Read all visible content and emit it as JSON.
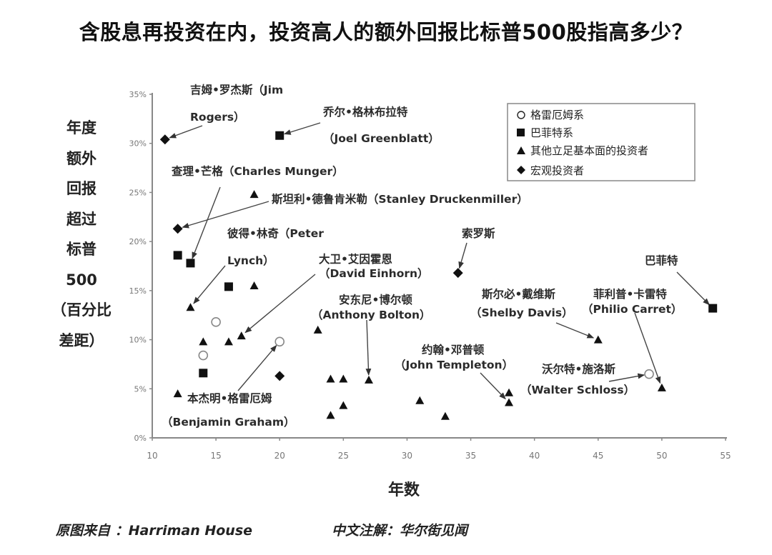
{
  "title": "含股息再投资在内，投资高人的额外回报比标普500股指高多少？",
  "y_axis_label_lines": [
    "年度",
    "额外",
    "回报",
    "超过",
    "标普",
    "500",
    "（百分比",
    "差距）"
  ],
  "x_axis_label": "年数",
  "footer": {
    "source": "原图来自 ：Harriman House",
    "note": "中文注解：华尔街见闻"
  },
  "legend": [
    {
      "symbol": "circle-open",
      "label": "格雷厄姆系"
    },
    {
      "symbol": "square",
      "label": "巴菲特系"
    },
    {
      "symbol": "triangle",
      "label": "其他立足基本面的投资者"
    },
    {
      "symbol": "diamond",
      "label": "宏观投资者"
    }
  ],
  "annotations": [
    {
      "lines": [
        "吉姆•罗杰斯（Jim",
        "Rogers）"
      ]
    },
    {
      "lines": [
        "乔尔•格林布拉特",
        "（Joel Greenblatt）"
      ]
    },
    {
      "lines": [
        "查理•芒格（Charles Munger）"
      ]
    },
    {
      "lines": [
        "斯坦利•德鲁肯米勒（Stanley Druckenmiller）"
      ]
    },
    {
      "lines": [
        "彼得•林奇（Peter",
        "Lynch）"
      ]
    },
    {
      "lines": [
        "大卫•艾因霍恩",
        "（David Einhorn）"
      ]
    },
    {
      "lines": [
        "安东尼•博尔顿",
        "（Anthony Bolton）"
      ]
    },
    {
      "lines": [
        "索罗斯"
      ]
    },
    {
      "lines": [
        "巴菲特"
      ]
    },
    {
      "lines": [
        "斯尔必•戴维斯",
        "（Shelby Davis）"
      ]
    },
    {
      "lines": [
        "菲利普•卡雷特",
        "（Philio Carret）"
      ]
    },
    {
      "lines": [
        "约翰•邓普顿",
        "（John Templeton）"
      ]
    },
    {
      "lines": [
        "沃尔特•施洛斯",
        "（Walter Schloss）"
      ]
    },
    {
      "lines": [
        "本杰明•格雷厄姆",
        "（Benjamin Graham）"
      ]
    }
  ],
  "chart_data": {
    "type": "scatter",
    "title": "含股息再投资在内，投资高人的额外回报比标普500股指高多少？",
    "xlabel": "年数",
    "ylabel": "年度额外回报超过标普500（百分比差距）",
    "xlim": [
      10,
      55
    ],
    "ylim": [
      0,
      35
    ],
    "x_ticks": [
      10,
      15,
      20,
      25,
      30,
      35,
      40,
      45,
      50,
      55
    ],
    "y_ticks": [
      "0%",
      "5%",
      "10%",
      "15%",
      "20%",
      "25%",
      "30%",
      "35%"
    ],
    "grid": false,
    "legend_position": "upper right",
    "series": [
      {
        "name": "格雷厄姆系",
        "marker": "circle-open",
        "points": [
          {
            "x": 15,
            "y": 11.8
          },
          {
            "x": 14,
            "y": 8.4
          },
          {
            "x": 20,
            "y": 9.8,
            "label": "本杰明•格雷厄姆（Benjamin Graham）"
          },
          {
            "x": 49,
            "y": 6.5,
            "label": "沃尔特•施洛斯（Walter Schloss）"
          }
        ]
      },
      {
        "name": "巴菲特系",
        "marker": "square",
        "points": [
          {
            "x": 20,
            "y": 30.8,
            "label": "乔尔•格林布拉特（Joel Greenblatt）"
          },
          {
            "x": 12,
            "y": 18.6
          },
          {
            "x": 13,
            "y": 17.8,
            "label": "查理•芒格（Charles Munger）"
          },
          {
            "x": 16,
            "y": 15.4
          },
          {
            "x": 14,
            "y": 6.6
          },
          {
            "x": 54,
            "y": 13.2,
            "label": "巴菲特"
          }
        ]
      },
      {
        "name": "其他立足基本面的投资者",
        "marker": "triangle",
        "points": [
          {
            "x": 18,
            "y": 24.8
          },
          {
            "x": 18,
            "y": 15.5
          },
          {
            "x": 13,
            "y": 13.3,
            "label": "彼得•林奇（Peter Lynch）"
          },
          {
            "x": 14,
            "y": 9.8
          },
          {
            "x": 16,
            "y": 9.8
          },
          {
            "x": 17,
            "y": 10.4,
            "label": "大卫•艾因霍恩（David Einhorn）"
          },
          {
            "x": 12,
            "y": 4.5
          },
          {
            "x": 23,
            "y": 11.0
          },
          {
            "x": 24,
            "y": 6.0
          },
          {
            "x": 25,
            "y": 6.0
          },
          {
            "x": 27,
            "y": 5.9,
            "label": "安东尼•博尔顿（Anthony Bolton）"
          },
          {
            "x": 25,
            "y": 3.3
          },
          {
            "x": 24,
            "y": 2.3
          },
          {
            "x": 31,
            "y": 3.8
          },
          {
            "x": 33,
            "y": 2.2
          },
          {
            "x": 38,
            "y": 4.6
          },
          {
            "x": 38,
            "y": 3.6,
            "label": "约翰•邓普顿（John Templeton）"
          },
          {
            "x": 45,
            "y": 10.0,
            "label": "斯尔必•戴维斯（Shelby Davis）"
          },
          {
            "x": 50,
            "y": 5.1,
            "label": "菲利普•卡雷特（Philio Carret）"
          }
        ]
      },
      {
        "name": "宏观投资者",
        "marker": "diamond",
        "points": [
          {
            "x": 11,
            "y": 30.4,
            "label": "吉姆•罗杰斯（Jim Rogers）"
          },
          {
            "x": 12,
            "y": 21.3,
            "label": "斯坦利•德鲁肯米勒（Stanley Druckenmiller）"
          },
          {
            "x": 34,
            "y": 16.8,
            "label": "索罗斯"
          },
          {
            "x": 20,
            "y": 6.3
          }
        ]
      }
    ]
  }
}
